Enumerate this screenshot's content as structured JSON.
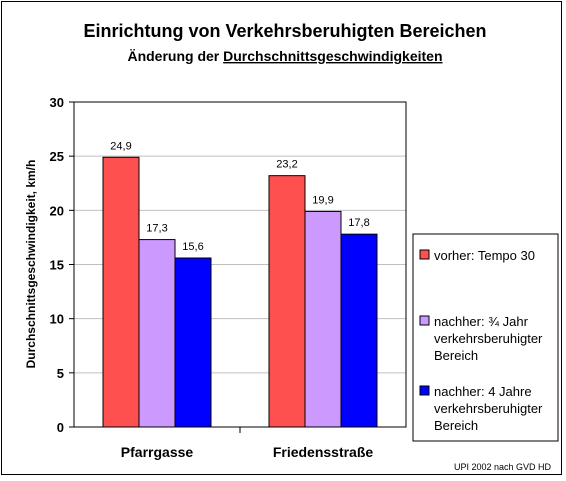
{
  "chart_data": {
    "type": "bar",
    "title": "Einrichtung von Verkehrsberuhigten Bereichen",
    "subtitle_prefix": "Änderung der ",
    "subtitle_underlined": "Durchschnittsgeschwindigkeiten",
    "ylabel": "Durchschnittsgeschwindigkeit, km/h",
    "xlabel": "",
    "ylim": [
      0,
      30
    ],
    "yticks": [
      0,
      5,
      10,
      15,
      20,
      25,
      30
    ],
    "categories": [
      "Pfarrgasse",
      "Friedensstraße"
    ],
    "series": [
      {
        "name": "vorher: Tempo 30",
        "values": [
          24.9,
          23.2
        ],
        "labels": [
          "24,9",
          "23,2"
        ],
        "color": "#FF5050"
      },
      {
        "name": "nachher: ¾ Jahr verkehrsberuhigter Bereich",
        "values": [
          17.3,
          19.9
        ],
        "labels": [
          "17,3",
          "19,9"
        ],
        "color": "#CC99FF"
      },
      {
        "name": "nachher: 4 Jahre verkehrsberuhigter Bereich",
        "values": [
          15.6,
          17.8
        ],
        "labels": [
          "15,6",
          "17,8"
        ],
        "color": "#0000FF"
      }
    ],
    "legend_lines": [
      [
        "vorher: Tempo 30"
      ],
      [
        "nachher: ¾ Jahr",
        "verkehrsberuhigter",
        "Bereich"
      ],
      [
        "nachher: 4 Jahre",
        "verkehrsberuhigter",
        "Bereich"
      ]
    ],
    "grid": true,
    "gridline_color": "#C0C0C0",
    "plot_background": "#FFFFFF",
    "legend_position": "right",
    "source_note": "UPI 2002 nach GVD HD"
  }
}
